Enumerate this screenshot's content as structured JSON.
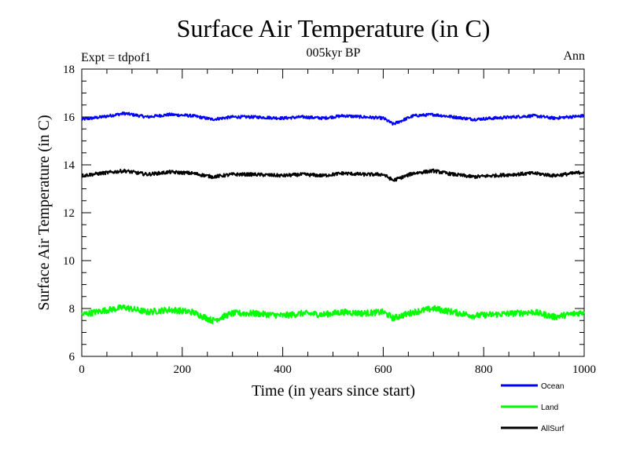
{
  "chart_data": {
    "type": "line",
    "title": "Surface Air Temperature (in C)",
    "subtitle": "005kyr BP",
    "left_label": "Expt = tdpof1",
    "right_label": "Ann",
    "xlabel": "Time (in years since start)",
    "ylabel": "Surface Air Temperature (in C)",
    "xlim": [
      0,
      1000
    ],
    "ylim": [
      6,
      18
    ],
    "x_ticks": [
      0,
      200,
      400,
      600,
      800,
      1000
    ],
    "y_ticks": [
      6,
      8,
      10,
      12,
      14,
      16,
      18
    ],
    "grid": false,
    "legend_position": "bottom-right",
    "series": [
      {
        "name": "Ocean",
        "color": "#0000ff",
        "x": [
          0,
          40,
          85,
          130,
          175,
          220,
          260,
          300,
          340,
          400,
          440,
          480,
          520,
          560,
          600,
          620,
          660,
          700,
          740,
          780,
          820,
          860,
          900,
          940,
          1000
        ],
        "values": [
          15.9,
          16.0,
          16.15,
          16.0,
          16.1,
          16.05,
          15.9,
          16.0,
          16.0,
          15.95,
          16.0,
          15.95,
          16.05,
          16.0,
          15.95,
          15.7,
          16.05,
          16.1,
          16.0,
          15.9,
          15.95,
          16.0,
          16.05,
          15.95,
          16.05
        ]
      },
      {
        "name": "Land",
        "color": "#00ff00",
        "x": [
          0,
          40,
          85,
          130,
          175,
          220,
          260,
          300,
          340,
          400,
          440,
          480,
          520,
          560,
          600,
          620,
          660,
          700,
          740,
          780,
          820,
          860,
          900,
          940,
          1000
        ],
        "values": [
          7.75,
          7.9,
          8.05,
          7.85,
          7.95,
          7.85,
          7.5,
          7.8,
          7.8,
          7.7,
          7.8,
          7.75,
          7.85,
          7.8,
          7.85,
          7.6,
          7.85,
          8.0,
          7.85,
          7.7,
          7.75,
          7.8,
          7.85,
          7.65,
          7.85
        ]
      },
      {
        "name": "AllSurf",
        "color": "#000000",
        "x": [
          0,
          40,
          85,
          130,
          175,
          220,
          260,
          300,
          340,
          400,
          440,
          480,
          520,
          560,
          600,
          620,
          660,
          700,
          740,
          780,
          820,
          860,
          900,
          940,
          1000
        ],
        "values": [
          13.55,
          13.65,
          13.75,
          13.6,
          13.7,
          13.65,
          13.5,
          13.6,
          13.6,
          13.55,
          13.6,
          13.55,
          13.65,
          13.6,
          13.6,
          13.35,
          13.65,
          13.75,
          13.6,
          13.5,
          13.55,
          13.6,
          13.65,
          13.55,
          13.7
        ]
      }
    ]
  }
}
